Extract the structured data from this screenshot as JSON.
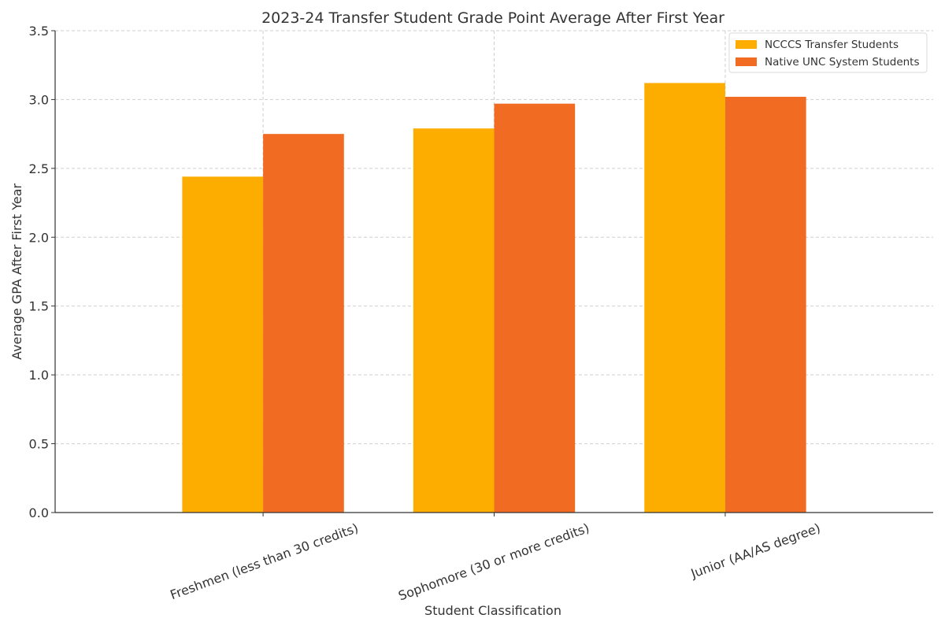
{
  "chart_data": {
    "type": "bar",
    "title": "2023-24 Transfer Student Grade Point Average After First Year",
    "xlabel": "Student Classification",
    "ylabel": "Average GPA After First Year",
    "categories": [
      "Freshmen (less than 30 credits)",
      "Sophomore (30 or more credits)",
      "Junior (AA/AS degree)"
    ],
    "series": [
      {
        "name": "NCCCS Transfer Students",
        "values": [
          2.44,
          2.79,
          3.12
        ],
        "color": "#FDAD00"
      },
      {
        "name": "Native UNC System Students",
        "values": [
          2.75,
          2.97,
          3.02
        ],
        "color": "#F26B22"
      }
    ],
    "ylim": [
      0,
      3.5
    ],
    "yticks": [
      "0.0",
      "0.5",
      "1.0",
      "1.5",
      "2.0",
      "2.5",
      "3.0",
      "3.5"
    ],
    "grid": true,
    "legend": "top-right"
  }
}
